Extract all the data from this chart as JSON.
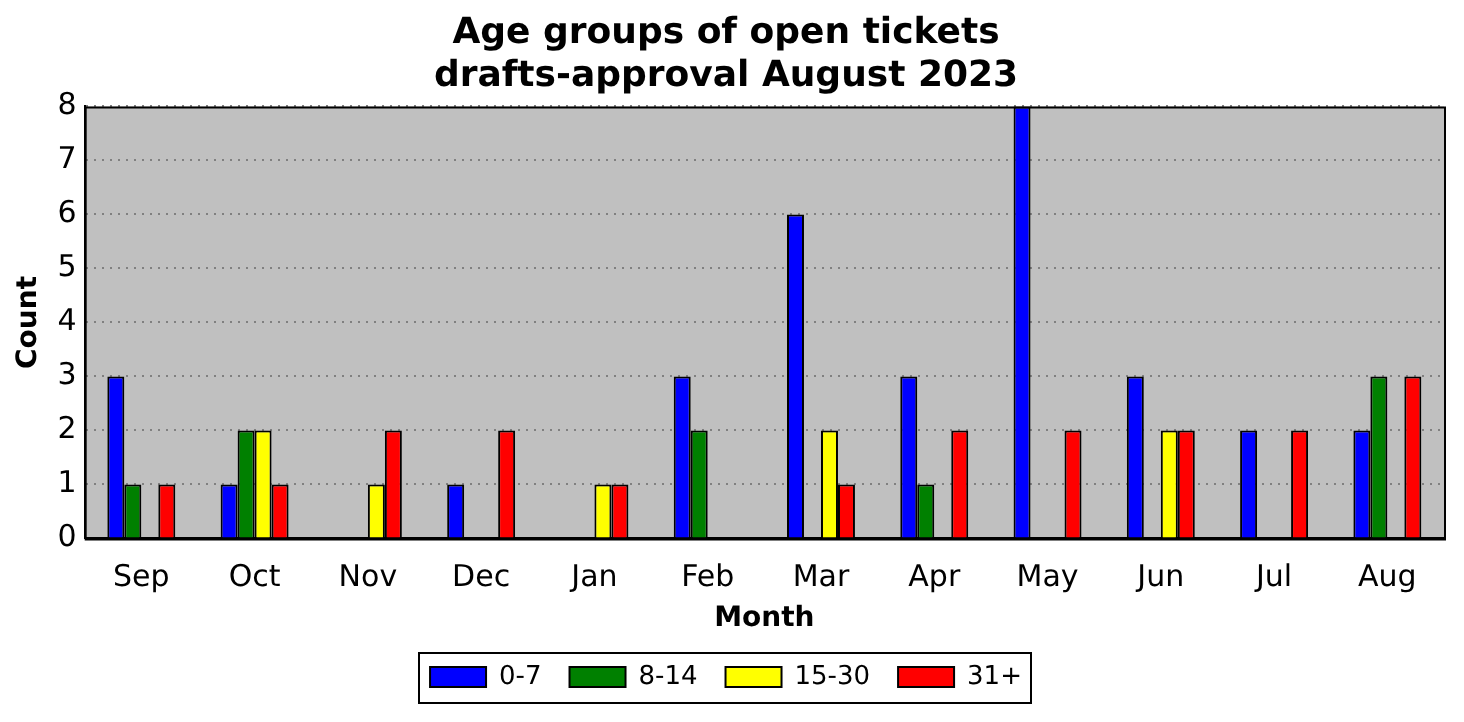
{
  "chart_data": {
    "type": "bar",
    "title": "Age groups of open tickets\ndrafts-approval August 2023",
    "xlabel": "Month",
    "ylabel": "Count",
    "categories": [
      "Sep",
      "Oct",
      "Nov",
      "Dec",
      "Jan",
      "Feb",
      "Mar",
      "Apr",
      "May",
      "Jun",
      "Jul",
      "Aug"
    ],
    "series": [
      {
        "name": "0-7",
        "color": "#0000ff",
        "values": [
          3,
          1,
          0,
          1,
          0,
          3,
          6,
          3,
          8,
          3,
          2,
          2
        ]
      },
      {
        "name": "8-14",
        "color": "#008000",
        "values": [
          1,
          2,
          0,
          0,
          0,
          2,
          0,
          1,
          0,
          0,
          0,
          3
        ]
      },
      {
        "name": "15-30",
        "color": "#ffff00",
        "values": [
          0,
          2,
          1,
          0,
          1,
          0,
          2,
          0,
          0,
          2,
          0,
          0
        ]
      },
      {
        "name": "31+",
        "color": "#ff0000",
        "values": [
          1,
          1,
          2,
          2,
          1,
          0,
          1,
          2,
          2,
          2,
          2,
          3
        ]
      }
    ],
    "ylim": [
      0,
      8
    ],
    "yticks": [
      0,
      1,
      2,
      3,
      4,
      5,
      6,
      7,
      8
    ],
    "grid": "y",
    "legend": "bottom"
  }
}
